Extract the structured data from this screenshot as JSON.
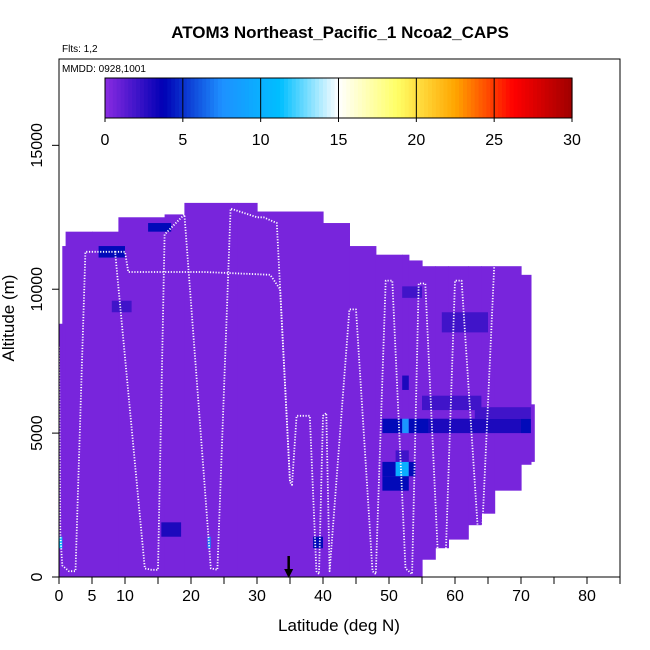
{
  "chart_data": {
    "type": "heatmap",
    "title": "ATOM3 Northeast_Pacific_1 Ncoa2_CAPS",
    "notes": [
      "Flts: 1,2",
      "MMDD: 0928,1001"
    ],
    "xlabel": "Latitude (deg N)",
    "ylabel": "Altitude (m)",
    "xlim": [
      0,
      85
    ],
    "ylim": [
      0,
      18000
    ],
    "x_ticks": [
      0,
      5,
      10,
      20,
      30,
      40,
      50,
      60,
      70,
      80
    ],
    "y_ticks": [
      0,
      5000,
      10000,
      15000
    ],
    "colorbar": {
      "range": [
        0,
        30
      ],
      "ticks": [
        0,
        5,
        10,
        15,
        20,
        25,
        30
      ],
      "colors": [
        "#8a2be2",
        "#0000b4",
        "#1e90ff",
        "#00bfff",
        "#ffffff",
        "#ffff66",
        "#ffa500",
        "#ff0000",
        "#a00000"
      ]
    },
    "background_value": 0.5,
    "coverage": [
      [
        0,
        0,
        8800
      ],
      [
        0.5,
        0,
        11500
      ],
      [
        1,
        0,
        12000
      ],
      [
        5,
        0,
        12000
      ],
      [
        9,
        0,
        12500
      ],
      [
        16,
        0,
        12600
      ],
      [
        19,
        0,
        13000
      ],
      [
        27,
        0,
        13000
      ],
      [
        30,
        0,
        12700
      ],
      [
        40,
        0,
        12300
      ],
      [
        44,
        0,
        11500
      ],
      [
        48,
        0,
        11200
      ],
      [
        52,
        0,
        11200
      ],
      [
        53,
        0,
        11000
      ],
      [
        55,
        600,
        10800
      ],
      [
        57,
        1000,
        10800
      ],
      [
        59,
        1300,
        10800
      ],
      [
        62,
        1800,
        10800
      ],
      [
        64,
        2200,
        10800
      ],
      [
        66,
        3000,
        10800
      ],
      [
        70,
        3900,
        10500
      ],
      [
        71.5,
        4000,
        6000
      ]
    ],
    "cells": [
      {
        "lat": 6,
        "lat2": 10,
        "alt": 11100,
        "alt2": 11500,
        "value": 4
      },
      {
        "lat": 13.5,
        "lat2": 17,
        "alt": 12000,
        "alt2": 12300,
        "value": 4
      },
      {
        "lat": 15.5,
        "lat2": 18.5,
        "alt": 1400,
        "alt2": 1900,
        "value": 3
      },
      {
        "lat": 22.5,
        "lat2": 23,
        "alt": 1000,
        "alt2": 1400,
        "value": 7
      },
      {
        "lat": 0,
        "lat2": 0.5,
        "alt": 1000,
        "alt2": 1400,
        "value": 11
      },
      {
        "lat": 38.5,
        "lat2": 40,
        "alt": 1000,
        "alt2": 1400,
        "value": 4
      },
      {
        "lat": 49,
        "lat2": 52,
        "alt": 5000,
        "alt2": 5500,
        "value": 4
      },
      {
        "lat": 52,
        "lat2": 53,
        "alt": 5000,
        "alt2": 5500,
        "value": 8
      },
      {
        "lat": 53,
        "lat2": 56,
        "alt": 5000,
        "alt2": 5500,
        "value": 4
      },
      {
        "lat": 56,
        "lat2": 70,
        "alt": 5000,
        "alt2": 5500,
        "value": 3
      },
      {
        "lat": 70,
        "lat2": 71.5,
        "alt": 5000,
        "alt2": 5500,
        "value": 4
      },
      {
        "lat": 63,
        "lat2": 71.5,
        "alt": 5500,
        "alt2": 5900,
        "value": 2
      },
      {
        "lat": 49,
        "lat2": 51,
        "alt": 3500,
        "alt2": 4000,
        "value": 4
      },
      {
        "lat": 51,
        "lat2": 53,
        "alt": 3500,
        "alt2": 4000,
        "value": 10
      },
      {
        "lat": 53,
        "lat2": 54,
        "alt": 3500,
        "alt2": 4000,
        "value": 4
      },
      {
        "lat": 49,
        "lat2": 53,
        "alt": 3000,
        "alt2": 3500,
        "value": 4
      },
      {
        "lat": 51,
        "lat2": 53,
        "alt": 4000,
        "alt2": 4400,
        "value": 2
      },
      {
        "lat": 52,
        "lat2": 53,
        "alt": 6500,
        "alt2": 7000,
        "value": 3
      },
      {
        "lat": 52,
        "lat2": 55,
        "alt": 9700,
        "alt2": 10100,
        "value": 2
      },
      {
        "lat": 58,
        "lat2": 65,
        "alt": 8500,
        "alt2": 9200,
        "value": 2
      },
      {
        "lat": 55,
        "lat2": 64,
        "alt": 5800,
        "alt2": 6300,
        "value": 2
      },
      {
        "lat": 8,
        "lat2": 11,
        "alt": 9200,
        "alt2": 9600,
        "value": 2
      }
    ],
    "flight_track": [
      [
        0,
        8000
      ],
      [
        0.2,
        1500
      ],
      [
        0.5,
        400
      ],
      [
        1.5,
        200
      ],
      [
        2.5,
        200
      ],
      [
        4,
        11300
      ],
      [
        8.5,
        11300
      ],
      [
        13,
        300
      ],
      [
        14,
        250
      ],
      [
        15,
        250
      ],
      [
        16,
        11900
      ],
      [
        19,
        12600
      ],
      [
        23,
        300
      ],
      [
        24,
        250
      ],
      [
        26,
        12800
      ],
      [
        30,
        12500
      ],
      [
        31,
        12500
      ],
      [
        33,
        12300
      ],
      [
        35,
        3300
      ],
      [
        35.3,
        3200
      ],
      [
        36,
        5600
      ],
      [
        38,
        5600
      ],
      [
        39,
        200
      ],
      [
        39.4,
        100
      ],
      [
        40,
        5600
      ],
      [
        40.5,
        5700
      ],
      [
        41,
        200
      ],
      [
        44,
        9300
      ],
      [
        45,
        9300
      ],
      [
        47.5,
        200
      ],
      [
        48,
        100
      ],
      [
        49.5,
        10300
      ],
      [
        50.5,
        10300
      ],
      [
        52.5,
        300
      ],
      [
        53.5,
        100
      ],
      [
        54.5,
        10200
      ],
      [
        55.5,
        10200
      ],
      [
        57.5,
        300
      ],
      [
        58.5,
        100
      ],
      [
        60,
        10300
      ],
      [
        61,
        10300
      ],
      [
        63.5,
        1500
      ],
      [
        64,
        1000
      ],
      [
        66,
        11100
      ],
      [
        70,
        10900
      ],
      [
        70.5,
        10900
      ],
      [
        71,
        10800
      ]
    ],
    "flight_track_2": [
      [
        8.5,
        11300
      ],
      [
        10,
        11300
      ],
      [
        10.5,
        10600
      ],
      [
        22,
        10600
      ],
      [
        32,
        10500
      ],
      [
        33.5,
        10000
      ],
      [
        35,
        3300
      ]
    ],
    "arrow_marker_lat": 34.8
  }
}
